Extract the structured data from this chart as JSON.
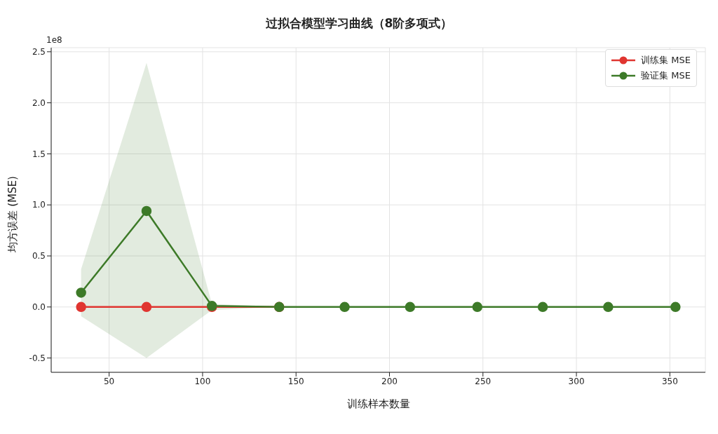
{
  "chart_data": {
    "type": "line",
    "title": "过拟合模型学习曲线（8阶多项式）",
    "xlabel": "训练样本数量",
    "ylabel": "均方误差 (MSE)",
    "annotations": [
      "1e8"
    ],
    "x": [
      35,
      70,
      105,
      141,
      176,
      211,
      247,
      282,
      317,
      353
    ],
    "series": [
      {
        "name": "训练集 MSE",
        "color": "#e03530",
        "values": [
          0,
          0,
          0,
          0,
          null,
          null,
          null,
          null,
          null,
          null
        ]
      },
      {
        "name": "验证集 MSE",
        "color": "#3d7a28",
        "values": [
          0.14,
          0.94,
          0.01,
          0,
          0,
          0,
          0,
          0,
          0,
          0
        ],
        "lower": [
          -0.09,
          -0.5,
          -0.03,
          0,
          0,
          0,
          0,
          0,
          0,
          0
        ],
        "upper": [
          0.37,
          2.39,
          0.03,
          0,
          0,
          0,
          0,
          0,
          0,
          0
        ]
      }
    ],
    "xlim": [
      19,
      369
    ],
    "xticks": [
      50,
      100,
      150,
      200,
      250,
      300,
      350
    ],
    "ylim": [
      -0.64,
      2.54
    ],
    "yticks": [
      -0.5,
      {
        "value": 0,
        "label": "0.0"
      },
      0.5,
      {
        "value": 1,
        "label": "1.0"
      },
      1.5,
      {
        "value": 2,
        "label": "2.0"
      },
      2.5
    ],
    "grid": true,
    "legend": "top right",
    "marker": "circle",
    "line_style": "solid"
  }
}
